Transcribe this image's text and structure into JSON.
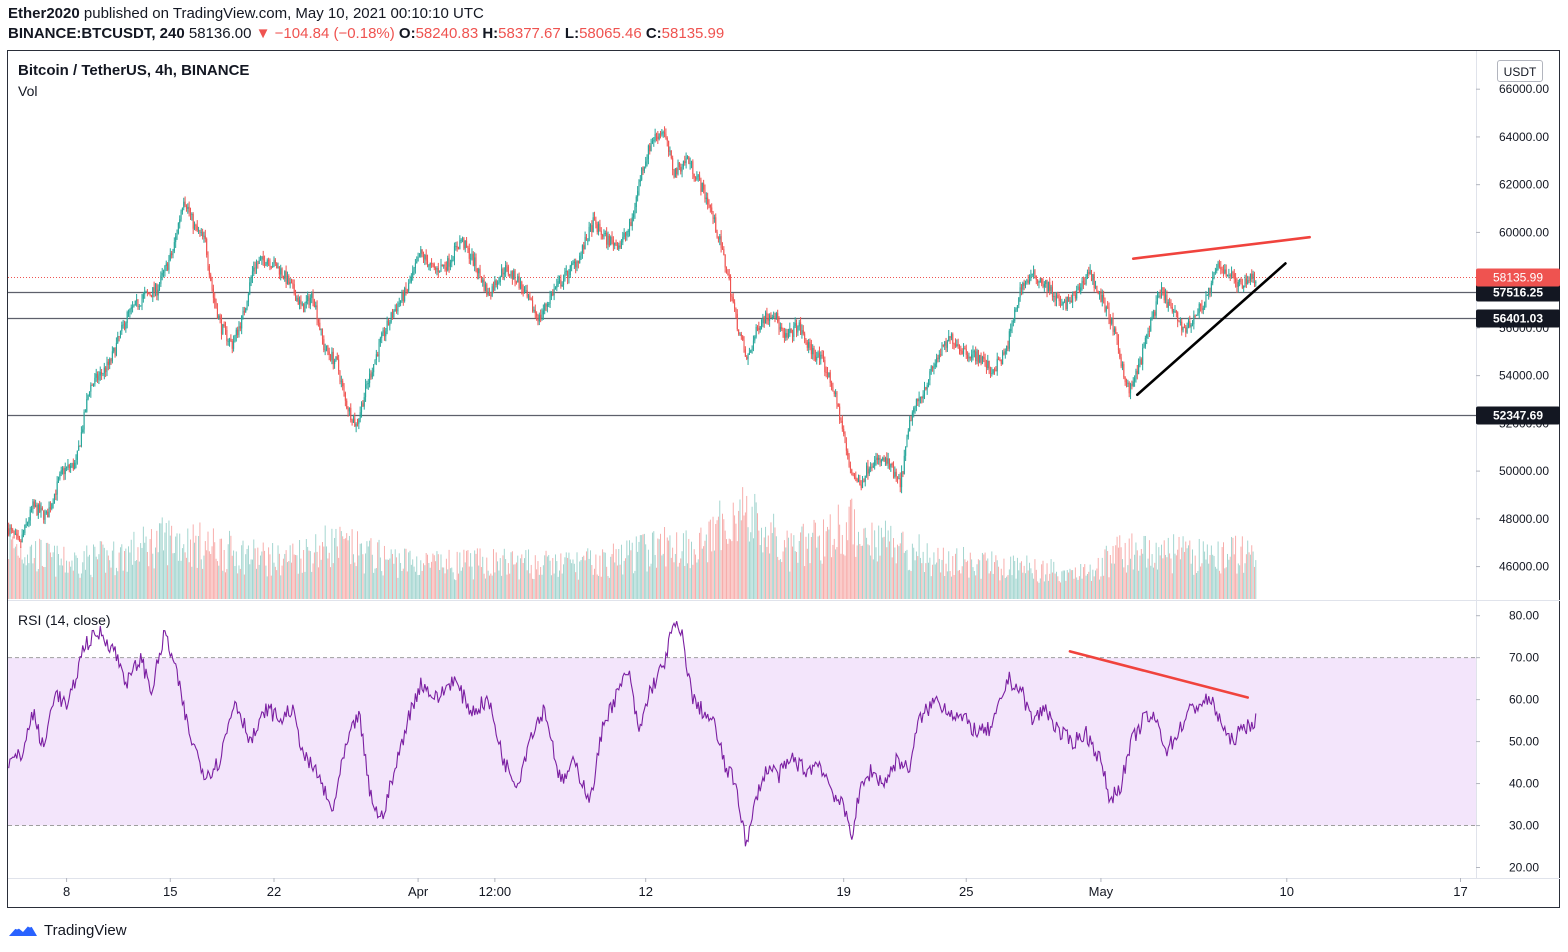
{
  "header": {
    "author": "Ether2020",
    "published_text": "published on TradingView.com, May 10, 2021 00:10:10 UTC",
    "symbol": "BINANCE:BTCUSDT, 240",
    "last_price": "58136.00",
    "change_arrow": "▼",
    "change": "−104.84 (−0.18%)",
    "open_label": "O:",
    "open": "58240.83",
    "high_label": "H:",
    "high": "58377.67",
    "low_label": "L:",
    "low": "58065.46",
    "close_label": "C:",
    "close": "58135.99"
  },
  "legend": {
    "title": "Bitcoin / TetherUS, 4h, BINANCE",
    "volume": "Vol",
    "rsi": "RSI (14, close)"
  },
  "unit": "USDT",
  "footer": {
    "brand": "TradingView"
  },
  "colors": {
    "up": "#26a69a",
    "down": "#ef5350",
    "rsi_line": "#7b1fa2",
    "rsi_band": "#f3e5fb",
    "trend_red": "#f0433d",
    "trend_black": "#000000"
  },
  "chart_data": {
    "type": "candlestick",
    "price_axis": {
      "ticks": [
        46000,
        48000,
        50000,
        52000,
        54000,
        56000,
        58000,
        60000,
        62000,
        64000,
        66000
      ],
      "tick_labels": [
        "46000.00",
        "48000.00",
        "50000.00",
        "52000.00",
        "54000.00",
        "56000.00",
        "58000.00",
        "60000.00",
        "62000.00",
        "64000.00",
        "66000.00"
      ],
      "ylim": [
        44600,
        67600
      ]
    },
    "x_axis": {
      "labels": [
        "8",
        "15",
        "22",
        "Apr",
        "12:00",
        "12",
        "19",
        "25",
        "May",
        "10",
        "17"
      ],
      "label_bar_index": [
        43,
        120,
        197,
        304,
        361,
        473,
        620,
        711,
        811,
        949,
        1078
      ],
      "bars_total": 1090
    },
    "horizontal_levels": [
      {
        "value": 57516.25,
        "label": "57516.25"
      },
      {
        "value": 56401.03,
        "label": "56401.03"
      },
      {
        "value": 52347.69,
        "label": "52347.69"
      }
    ],
    "last_price_line": {
      "value": 58135.99,
      "label": "58135.99"
    },
    "price_anchors": [
      [
        0,
        47600
      ],
      [
        8,
        46900
      ],
      [
        18,
        48500
      ],
      [
        28,
        48100
      ],
      [
        40,
        50000
      ],
      [
        50,
        50300
      ],
      [
        60,
        53500
      ],
      [
        75,
        54500
      ],
      [
        88,
        56500
      ],
      [
        100,
        57300
      ],
      [
        110,
        57600
      ],
      [
        122,
        59200
      ],
      [
        130,
        61500
      ],
      [
        138,
        60200
      ],
      [
        146,
        59600
      ],
      [
        152,
        57300
      ],
      [
        158,
        56000
      ],
      [
        166,
        55300
      ],
      [
        174,
        56500
      ],
      [
        182,
        58600
      ],
      [
        192,
        58900
      ],
      [
        202,
        58400
      ],
      [
        212,
        57500
      ],
      [
        218,
        56800
      ],
      [
        226,
        57400
      ],
      [
        234,
        55200
      ],
      [
        244,
        54500
      ],
      [
        250,
        52900
      ],
      [
        258,
        51900
      ],
      [
        266,
        53600
      ],
      [
        276,
        55400
      ],
      [
        286,
        56700
      ],
      [
        296,
        57600
      ],
      [
        306,
        59100
      ],
      [
        316,
        58400
      ],
      [
        326,
        58700
      ],
      [
        336,
        59700
      ],
      [
        346,
        58700
      ],
      [
        356,
        57400
      ],
      [
        368,
        58500
      ],
      [
        378,
        58000
      ],
      [
        386,
        57100
      ],
      [
        394,
        56400
      ],
      [
        404,
        57500
      ],
      [
        414,
        58200
      ],
      [
        424,
        59000
      ],
      [
        434,
        60400
      ],
      [
        444,
        59700
      ],
      [
        454,
        59500
      ],
      [
        462,
        60300
      ],
      [
        470,
        62600
      ],
      [
        478,
        63900
      ],
      [
        486,
        64300
      ],
      [
        494,
        62500
      ],
      [
        504,
        63100
      ],
      [
        512,
        62200
      ],
      [
        520,
        61200
      ],
      [
        528,
        59600
      ],
      [
        534,
        58200
      ],
      [
        540,
        56400
      ],
      [
        548,
        54600
      ],
      [
        558,
        56300
      ],
      [
        568,
        56700
      ],
      [
        576,
        55500
      ],
      [
        586,
        56100
      ],
      [
        594,
        55200
      ],
      [
        604,
        54600
      ],
      [
        612,
        53500
      ],
      [
        618,
        52100
      ],
      [
        624,
        50200
      ],
      [
        632,
        49400
      ],
      [
        640,
        50400
      ],
      [
        652,
        50400
      ],
      [
        662,
        49400
      ],
      [
        670,
        52300
      ],
      [
        680,
        53500
      ],
      [
        690,
        54800
      ],
      [
        700,
        55600
      ],
      [
        710,
        55000
      ],
      [
        720,
        54800
      ],
      [
        730,
        54200
      ],
      [
        740,
        54900
      ],
      [
        752,
        57800
      ],
      [
        762,
        58200
      ],
      [
        772,
        57700
      ],
      [
        782,
        56900
      ],
      [
        792,
        57300
      ],
      [
        802,
        58400
      ],
      [
        810,
        57400
      ],
      [
        818,
        56400
      ],
      [
        826,
        54600
      ],
      [
        832,
        53300
      ],
      [
        840,
        54500
      ],
      [
        848,
        56300
      ],
      [
        856,
        57500
      ],
      [
        866,
        56500
      ],
      [
        874,
        55900
      ],
      [
        882,
        56600
      ],
      [
        890,
        57300
      ],
      [
        898,
        58600
      ],
      [
        906,
        58300
      ],
      [
        914,
        57800
      ],
      [
        920,
        58100
      ],
      [
        926,
        58140
      ]
    ],
    "volume_anchors": [
      [
        0,
        0.45
      ],
      [
        40,
        0.3
      ],
      [
        80,
        0.35
      ],
      [
        120,
        0.5
      ],
      [
        160,
        0.4
      ],
      [
        200,
        0.32
      ],
      [
        240,
        0.45
      ],
      [
        280,
        0.33
      ],
      [
        320,
        0.28
      ],
      [
        360,
        0.3
      ],
      [
        400,
        0.28
      ],
      [
        440,
        0.3
      ],
      [
        480,
        0.42
      ],
      [
        520,
        0.46
      ],
      [
        540,
        0.75
      ],
      [
        580,
        0.38
      ],
      [
        620,
        0.6
      ],
      [
        650,
        0.5
      ],
      [
        690,
        0.32
      ],
      [
        730,
        0.28
      ],
      [
        770,
        0.24
      ],
      [
        800,
        0.22
      ],
      [
        830,
        0.4
      ],
      [
        860,
        0.38
      ],
      [
        890,
        0.34
      ],
      [
        920,
        0.38
      ],
      [
        926,
        0.4
      ]
    ],
    "rsi_axis": {
      "ticks": [
        20,
        30,
        40,
        50,
        60,
        70,
        80
      ],
      "tick_labels": [
        "20.00",
        "30.00",
        "40.00",
        "50.00",
        "60.00",
        "70.00",
        "80.00"
      ],
      "ylim": [
        17.5,
        83.5
      ],
      "overbought": 70,
      "oversold": 30
    },
    "rsi_anchors": [
      [
        0,
        45
      ],
      [
        10,
        47
      ],
      [
        18,
        57
      ],
      [
        26,
        48
      ],
      [
        34,
        62
      ],
      [
        44,
        58
      ],
      [
        56,
        73
      ],
      [
        68,
        76
      ],
      [
        78,
        72
      ],
      [
        88,
        64
      ],
      [
        98,
        70
      ],
      [
        106,
        62
      ],
      [
        116,
        76
      ],
      [
        124,
        67
      ],
      [
        134,
        52
      ],
      [
        146,
        42
      ],
      [
        156,
        45
      ],
      [
        168,
        60
      ],
      [
        180,
        50
      ],
      [
        192,
        58
      ],
      [
        202,
        55
      ],
      [
        210,
        58
      ],
      [
        220,
        46
      ],
      [
        230,
        42
      ],
      [
        240,
        33
      ],
      [
        250,
        48
      ],
      [
        260,
        57
      ],
      [
        268,
        38
      ],
      [
        276,
        31
      ],
      [
        286,
        42
      ],
      [
        296,
        55
      ],
      [
        306,
        64
      ],
      [
        318,
        60
      ],
      [
        330,
        65
      ],
      [
        344,
        57
      ],
      [
        356,
        60
      ],
      [
        368,
        45
      ],
      [
        378,
        40
      ],
      [
        388,
        52
      ],
      [
        398,
        58
      ],
      [
        410,
        40
      ],
      [
        420,
        45
      ],
      [
        432,
        36
      ],
      [
        442,
        55
      ],
      [
        450,
        60
      ],
      [
        460,
        67
      ],
      [
        468,
        52
      ],
      [
        476,
        62
      ],
      [
        486,
        68
      ],
      [
        494,
        78
      ],
      [
        500,
        75
      ],
      [
        508,
        60
      ],
      [
        516,
        57
      ],
      [
        524,
        54
      ],
      [
        532,
        44
      ],
      [
        540,
        40
      ],
      [
        548,
        25
      ],
      [
        556,
        38
      ],
      [
        564,
        44
      ],
      [
        572,
        42
      ],
      [
        582,
        46
      ],
      [
        592,
        43
      ],
      [
        602,
        45
      ],
      [
        612,
        38
      ],
      [
        620,
        34
      ],
      [
        626,
        28
      ],
      [
        632,
        38
      ],
      [
        640,
        43
      ],
      [
        650,
        40
      ],
      [
        660,
        46
      ],
      [
        668,
        43
      ],
      [
        676,
        55
      ],
      [
        688,
        60
      ],
      [
        700,
        57
      ],
      [
        710,
        55
      ],
      [
        720,
        52
      ],
      [
        730,
        53
      ],
      [
        742,
        65
      ],
      [
        752,
        62
      ],
      [
        760,
        55
      ],
      [
        770,
        58
      ],
      [
        780,
        52
      ],
      [
        790,
        50
      ],
      [
        800,
        52
      ],
      [
        810,
        46
      ],
      [
        818,
        36
      ],
      [
        826,
        40
      ],
      [
        834,
        50
      ],
      [
        844,
        56
      ],
      [
        852,
        55
      ],
      [
        860,
        48
      ],
      [
        868,
        52
      ],
      [
        876,
        57
      ],
      [
        884,
        59
      ],
      [
        892,
        60
      ],
      [
        900,
        55
      ],
      [
        906,
        50
      ],
      [
        914,
        52
      ],
      [
        920,
        54
      ],
      [
        926,
        55
      ]
    ],
    "annotations": [
      {
        "type": "trendline",
        "color": "red",
        "pane": "price",
        "from": [
          835,
          58900
        ],
        "to": [
          966,
          59800
        ]
      },
      {
        "type": "trendline",
        "color": "black",
        "pane": "price",
        "from": [
          838,
          53200
        ],
        "to": [
          948,
          58700
        ]
      },
      {
        "type": "trendline",
        "color": "red",
        "pane": "rsi",
        "from": [
          788,
          71.5
        ],
        "to": [
          920,
          60.5
        ]
      }
    ]
  }
}
